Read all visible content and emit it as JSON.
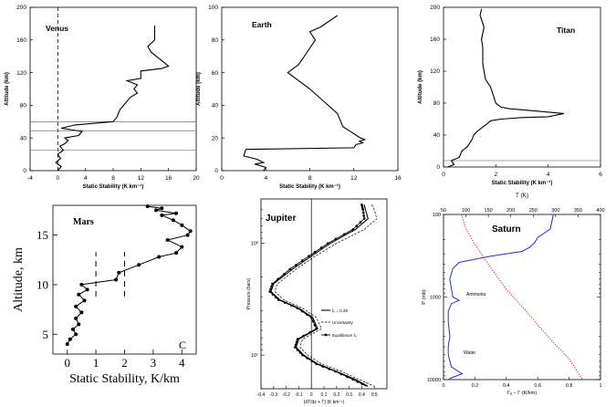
{
  "chart_data": [
    {
      "id": "venus",
      "type": "line",
      "panel_label": "Venus",
      "xlabel": "Static Stability (K km⁻¹)",
      "ylabel": "Altitude (km)",
      "xlim": [
        -4,
        20
      ],
      "ylim": [
        0,
        200
      ],
      "xticks": [
        -4,
        0,
        4,
        8,
        12,
        16,
        20
      ],
      "yticks": [
        0,
        40,
        80,
        120,
        160,
        200
      ],
      "vline_dashed": 0,
      "hlines": [
        25,
        49,
        60
      ],
      "series": [
        {
          "x": [
            0.0,
            0.5,
            -0.3,
            0.4,
            0.0,
            0.8,
            0.3,
            1.0,
            1.5,
            1.0,
            3.0,
            3.5,
            0.5,
            2.5,
            8.0,
            8.5,
            9.0,
            9.5,
            10.5,
            11.5,
            11.0,
            11.5,
            10.0,
            12.0,
            12.0,
            15.0,
            16.0,
            13.5,
            13.0,
            14.0,
            14.0
          ],
          "y": [
            0,
            5,
            10,
            15,
            20,
            25,
            30,
            33,
            37,
            40,
            43,
            48,
            52,
            56,
            60,
            65,
            75,
            80,
            90,
            95,
            100,
            105,
            110,
            113,
            122,
            125,
            128,
            145,
            152,
            160,
            178
          ]
        }
      ]
    },
    {
      "id": "earth",
      "type": "line",
      "panel_label": "Earth",
      "xlabel": "Static Stability (K km⁻¹)",
      "ylabel": "Altitude (km)",
      "xlim": [
        0,
        16
      ],
      "ylim": [
        0,
        100
      ],
      "xticks": [
        0,
        4,
        8,
        12,
        16
      ],
      "yticks": [
        0,
        20,
        40,
        60,
        80,
        100
      ],
      "series": [
        {
          "x": [
            3.8,
            4.0,
            3.0,
            3.8,
            3.2,
            2.0,
            2.2,
            12.0,
            12.2,
            12.8,
            12.5,
            13.0,
            12.6,
            11.0,
            10.5,
            8.0,
            6.0,
            7.0,
            8.5,
            8.0,
            9.0,
            10.5
          ],
          "y": [
            0,
            2,
            4,
            5,
            7,
            9,
            13,
            14,
            16,
            17,
            18,
            19,
            20,
            27,
            35,
            50,
            60,
            65,
            80,
            85,
            88,
            95
          ]
        }
      ]
    },
    {
      "id": "titan",
      "type": "line",
      "panel_label": "Titan",
      "xlabel": "Static Stability (K km⁻¹)",
      "ylabel": "Altitude (km)",
      "xlim": [
        0,
        6
      ],
      "ylim": [
        0,
        200
      ],
      "xticks": [
        0,
        2,
        4,
        6
      ],
      "yticks": [
        0,
        40,
        80,
        120,
        160,
        200
      ],
      "hlines": [
        8
      ],
      "series": [
        {
          "x": [
            0.15,
            0.4,
            0.3,
            0.6,
            0.7,
            0.9,
            1.0,
            1.1,
            1.15,
            1.3,
            1.5,
            1.7,
            1.8,
            2.2,
            3.0,
            4.0,
            4.6,
            3.6,
            2.5,
            2.2,
            2.0,
            1.9,
            1.8,
            1.7,
            1.6,
            1.55,
            1.5,
            1.5,
            1.45,
            1.55,
            1.4,
            1.45
          ],
          "y": [
            0,
            3,
            8,
            12,
            20,
            25,
            30,
            35,
            40,
            45,
            50,
            55,
            58,
            60,
            62,
            63,
            67,
            70,
            73,
            75,
            80,
            90,
            100,
            105,
            110,
            120,
            130,
            150,
            160,
            175,
            190,
            198
          ]
        }
      ]
    },
    {
      "id": "mars",
      "type": "line",
      "panel_label": "Mars",
      "corner_label": "C",
      "xlabel": "Static Stability, K/km",
      "ylabel": "Altitude, km",
      "xlim": [
        -0.5,
        4.5
      ],
      "ylim": [
        3,
        18
      ],
      "xticks": [
        0,
        1,
        2,
        3,
        4
      ],
      "yticks": [
        5,
        10,
        15
      ],
      "vlines_dashed": [
        1,
        2
      ],
      "series": [
        {
          "x": [
            0.0,
            0.1,
            0.3,
            0.2,
            0.4,
            0.3,
            0.5,
            0.3,
            0.6,
            0.4,
            0.7,
            0.5,
            1.7,
            1.8,
            2.5,
            3.2,
            3.8,
            4.0,
            3.5,
            4.2,
            4.3,
            4.0,
            3.7,
            3.3,
            3.8,
            3.1,
            3.3,
            2.8
          ],
          "y": [
            4.0,
            4.5,
            5.0,
            5.5,
            6.0,
            6.6,
            7.2,
            7.8,
            8.4,
            9.0,
            9.5,
            10.0,
            10.5,
            11.2,
            12.0,
            12.8,
            13.2,
            13.8,
            14.5,
            15.0,
            15.4,
            16.0,
            16.5,
            17.0,
            17.2,
            17.5,
            17.7,
            17.9
          ]
        }
      ]
    },
    {
      "id": "jupiter",
      "type": "line",
      "panel_label": "Jupiter",
      "xlabel": "(dT/dz + Γ) (K km⁻¹)",
      "ylabel": "Pressure (bars)",
      "xlim": [
        -0.4,
        0.6
      ],
      "ylim": [
        20,
        0.4
      ],
      "xticks": [
        -0.4,
        -0.3,
        -0.2,
        -0.1,
        0,
        0.1,
        0.2,
        0.3,
        0.4,
        0.5
      ],
      "ytick_labels": [
        "10⁰",
        "10¹"
      ],
      "ytick_values": [
        1,
        10
      ],
      "legend": [
        "fₚ = 0.25",
        "Uncertainty",
        "Equilibrium fₚ"
      ],
      "series": [
        {
          "name": "fₚ = 0.25",
          "x": [
            0.42,
            0.43,
            0.45,
            0.35,
            0.15,
            0.0,
            -0.15,
            -0.3,
            -0.32,
            -0.25,
            -0.1,
            0.01,
            0.05,
            -0.1,
            -0.12,
            -0.06,
            0.05,
            0.2,
            0.35,
            0.45
          ],
          "p": [
            0.45,
            0.5,
            0.6,
            0.75,
            1.0,
            1.3,
            1.7,
            2.3,
            2.7,
            3.2,
            3.8,
            4.6,
            5.8,
            7.2,
            8.5,
            10.0,
            12.0,
            14.0,
            16.5,
            19.0
          ]
        },
        {
          "name": "Uncertainty",
          "x": [
            0.48,
            0.5,
            0.52,
            0.42,
            0.2,
            0.03,
            -0.12,
            -0.27,
            -0.29,
            -0.22,
            -0.07,
            0.04,
            0.08,
            -0.07,
            -0.09,
            -0.03,
            0.08,
            0.24,
            0.38,
            0.5
          ],
          "p": [
            0.45,
            0.5,
            0.6,
            0.75,
            1.0,
            1.3,
            1.7,
            2.3,
            2.7,
            3.2,
            3.8,
            4.6,
            5.8,
            7.2,
            8.5,
            10.0,
            12.0,
            14.0,
            16.5,
            19.0
          ]
        },
        {
          "name": "Equilibrium fₚ",
          "x": [
            0.4,
            0.41,
            0.42,
            0.33,
            0.13,
            -0.02,
            -0.17,
            -0.31,
            -0.33,
            -0.26,
            -0.11,
            0.0,
            0.04,
            -0.11,
            -0.13,
            -0.07,
            0.04,
            0.19,
            0.33,
            0.44
          ],
          "p": [
            0.45,
            0.5,
            0.6,
            0.75,
            1.0,
            1.3,
            1.7,
            2.3,
            2.7,
            3.2,
            3.8,
            4.6,
            5.8,
            7.2,
            8.5,
            10.0,
            12.0,
            14.0,
            16.5,
            19.0
          ]
        }
      ]
    },
    {
      "id": "saturn",
      "type": "line",
      "panel_label": "Saturn",
      "xlabel": "Γₐ − Γ (K/km)",
      "ylabel": "P (mb)",
      "x2label": "T (K)",
      "xlim": [
        0,
        1
      ],
      "x2lim": [
        50,
        400
      ],
      "ylim": [
        10000,
        100
      ],
      "xticks": [
        0,
        0.2,
        0.4,
        0.6,
        0.8,
        1
      ],
      "x2ticks": [
        50,
        100,
        150,
        200,
        250,
        300,
        350,
        400
      ],
      "yticks": [
        100,
        1000,
        10000
      ],
      "annotations": [
        "Ammonia",
        "Water"
      ],
      "series": [
        {
          "axis": "bottom",
          "color": "#2230cc",
          "x": [
            0.7,
            0.68,
            0.6,
            0.58,
            0.55,
            0.5,
            0.3,
            0.1,
            0.06,
            0.04,
            0.05,
            0.06,
            0.1,
            0.05,
            0.03,
            0.03,
            0.04,
            0.03,
            0.03,
            0.05,
            0.12,
            0.05,
            0.03
          ],
          "p": [
            100,
            150,
            190,
            220,
            250,
            280,
            320,
            380,
            450,
            600,
            800,
            1000,
            1100,
            1200,
            1500,
            2000,
            3000,
            4000,
            5000,
            7000,
            8500,
            9500,
            10000
          ]
        },
        {
          "axis": "top",
          "color": "#d01818",
          "dotted": true,
          "T": [
            90,
            100,
            120,
            150,
            190,
            230,
            270,
            300,
            330,
            360
          ],
          "p": [
            100,
            150,
            230,
            400,
            800,
            1400,
            2500,
            3800,
            5600,
            10000
          ]
        }
      ]
    }
  ]
}
